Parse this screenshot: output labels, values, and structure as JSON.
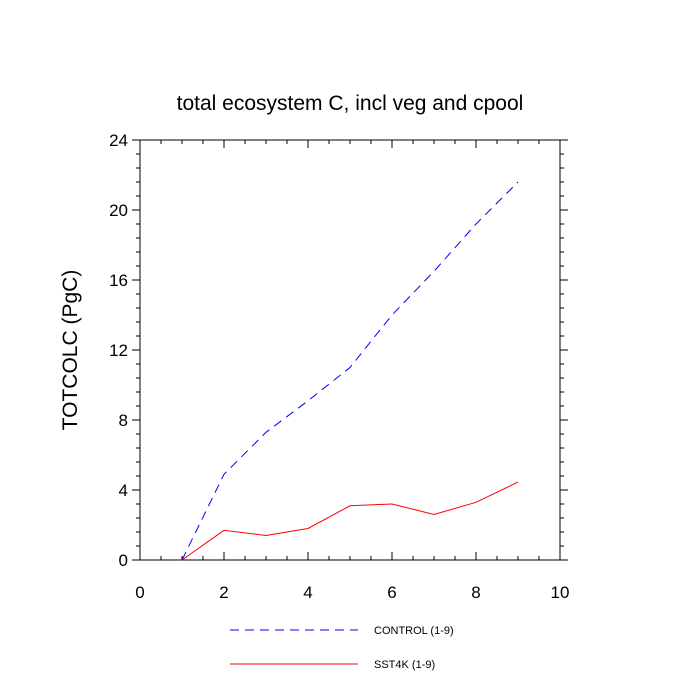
{
  "chart_data": {
    "type": "line",
    "title": "total ecosystem C, incl veg and cpool",
    "xlabel": "",
    "ylabel": "TOTCOLC  (PgC)",
    "xlim": [
      0,
      10
    ],
    "ylim": [
      0,
      24
    ],
    "xticks": [
      0,
      2,
      4,
      6,
      8,
      10
    ],
    "yticks": [
      0,
      4,
      8,
      12,
      16,
      20,
      24
    ],
    "xtick_labels": [
      "0",
      "2",
      "4",
      "6",
      "8",
      "10"
    ],
    "ytick_labels": [
      "0",
      "4",
      "8",
      "12",
      "16",
      "20",
      "24"
    ],
    "x_minor_step": 0.5,
    "y_minor_step": 0.8,
    "grid": false,
    "legend_position": "bottom",
    "series": [
      {
        "name": "CONTROL (1-9)",
        "color": "#0000ff",
        "line_style": "dashed",
        "x": [
          1,
          2,
          3,
          4,
          5,
          6,
          7,
          8,
          9
        ],
        "values": [
          0,
          4.9,
          7.3,
          9.1,
          11.0,
          14.0,
          16.5,
          19.2,
          21.6
        ]
      },
      {
        "name": "SST4K (1-9)",
        "color": "#ff0000",
        "line_style": "solid",
        "x": [
          1,
          2,
          3,
          4,
          5,
          6,
          7,
          8,
          9
        ],
        "values": [
          0,
          1.7,
          1.4,
          1.8,
          3.1,
          3.2,
          2.6,
          3.3,
          4.45
        ]
      }
    ]
  }
}
